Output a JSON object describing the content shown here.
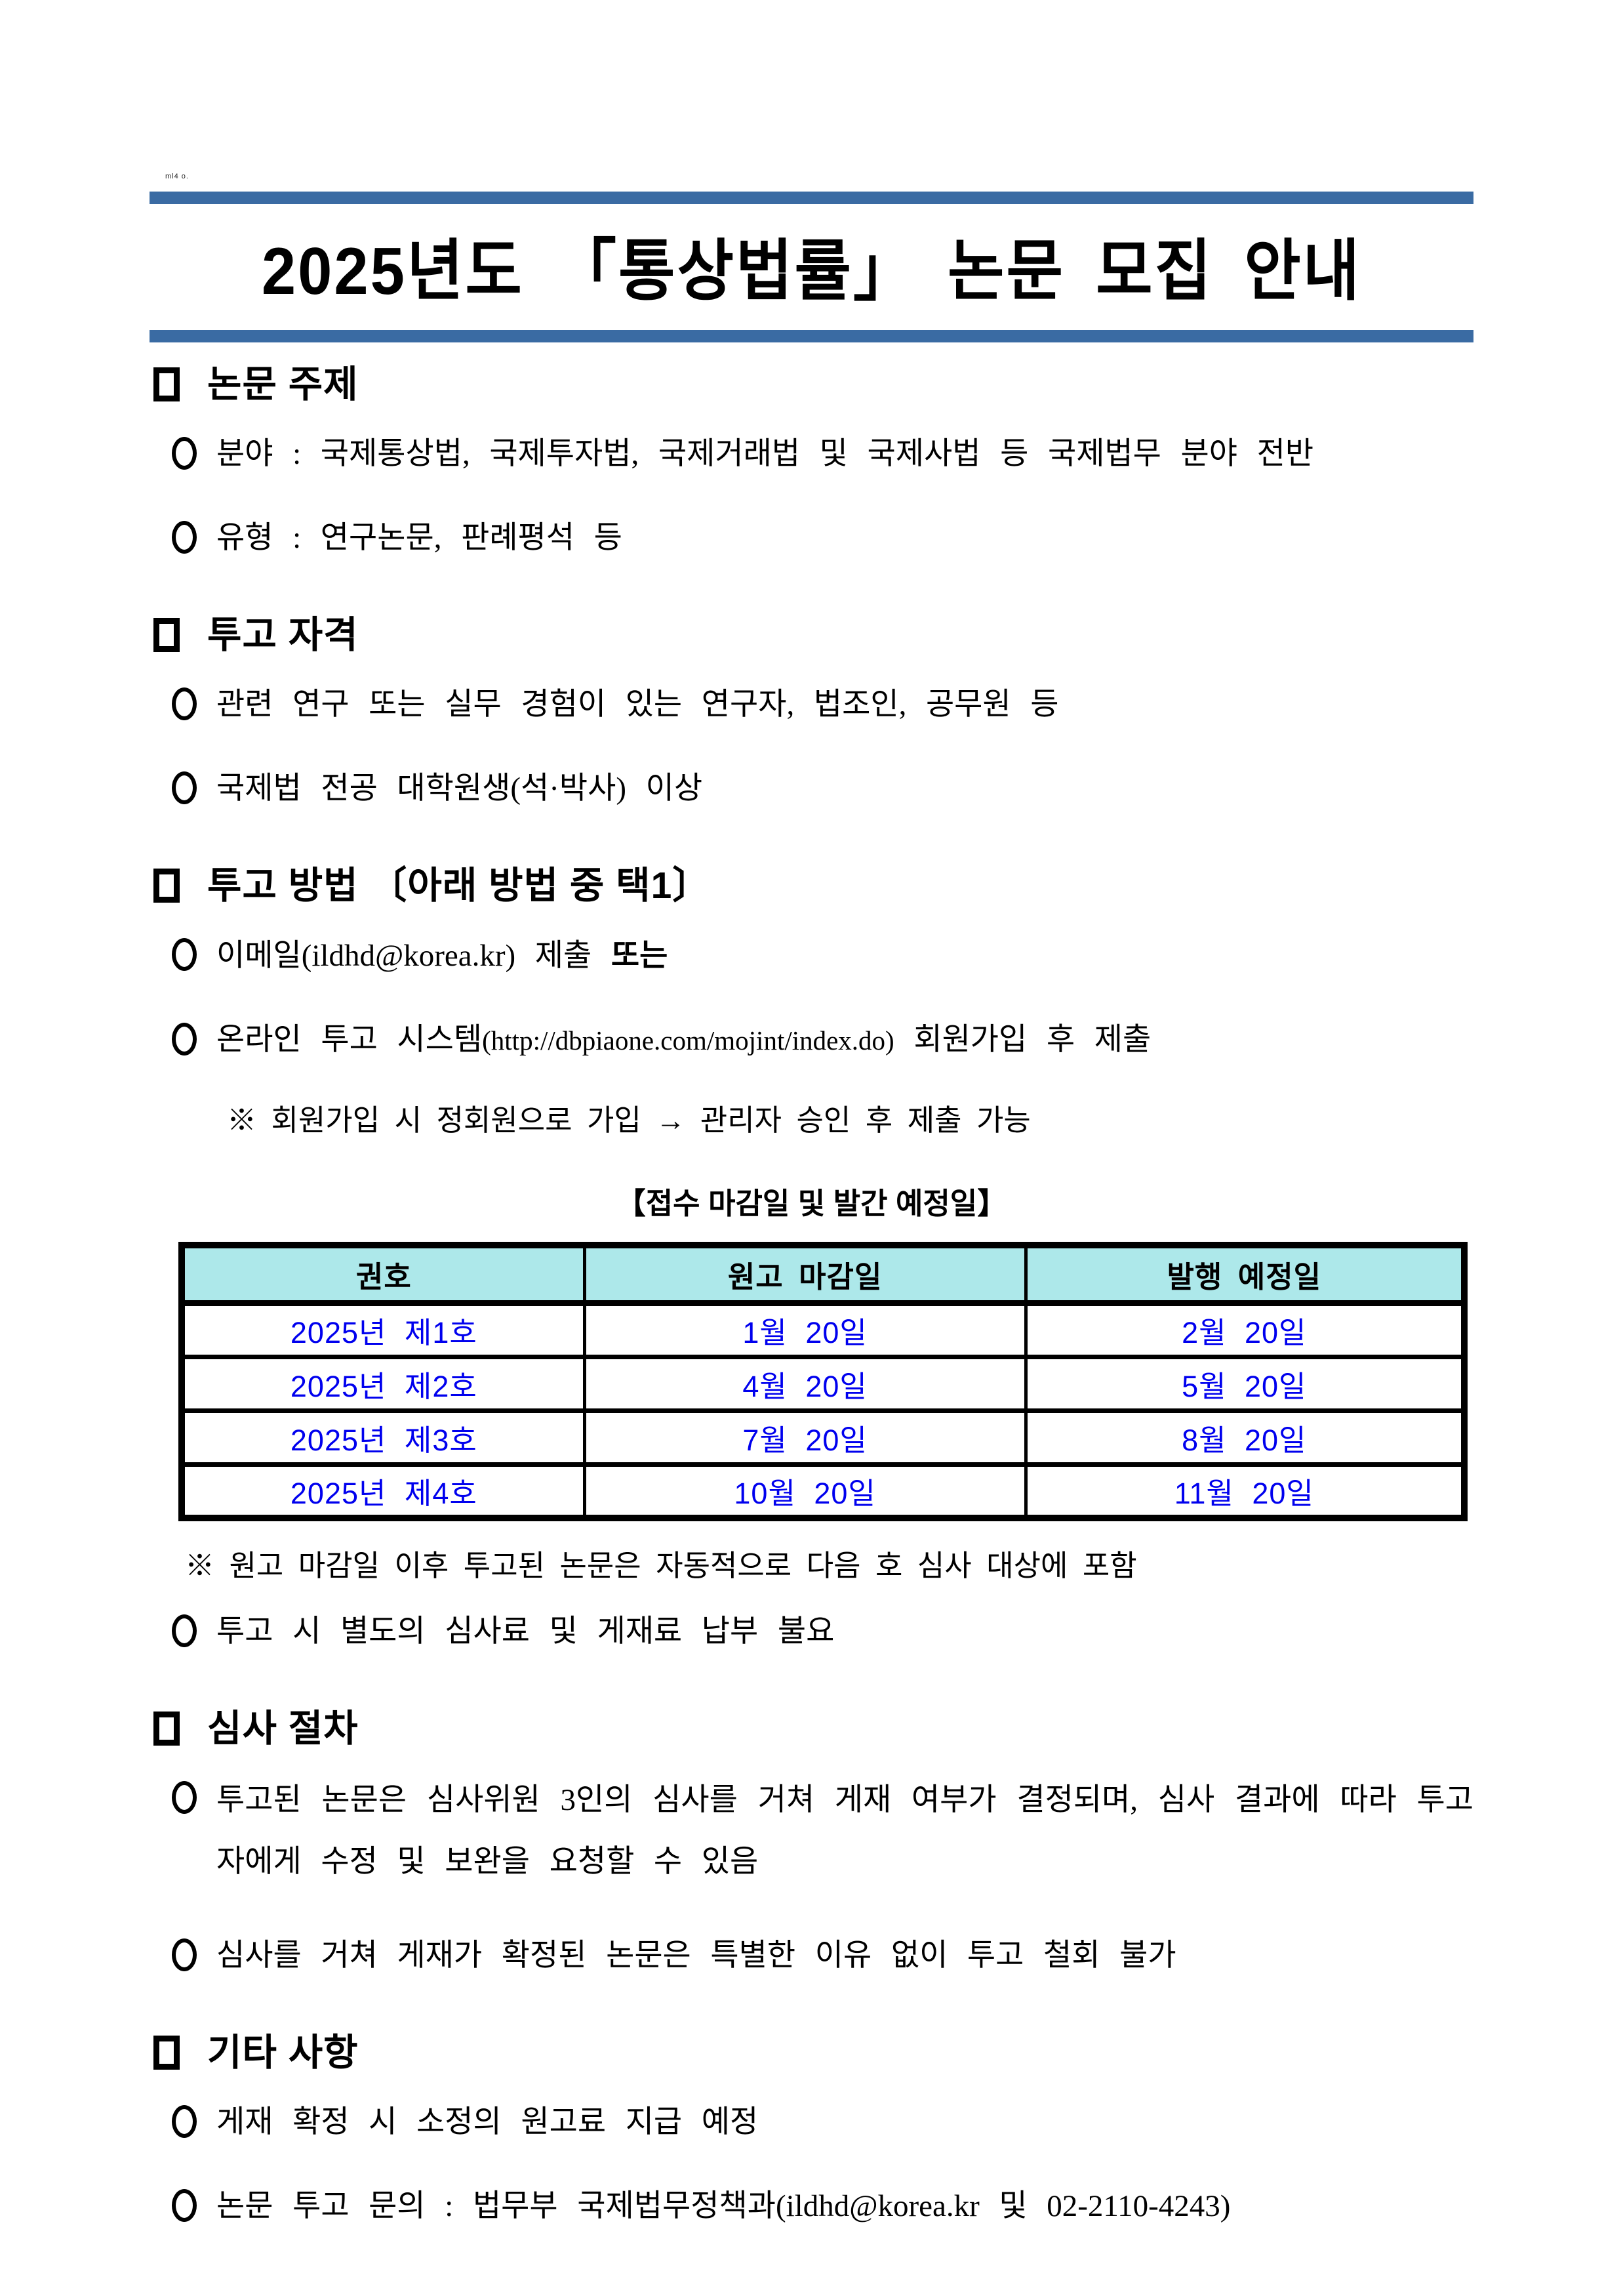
{
  "artifact": "ml4 o.",
  "title": "2025년도 「통상법률」 논문 모집 안내",
  "sections": {
    "topic": {
      "heading": "논문 주제",
      "items": [
        "분야 : 국제통상법, 국제투자법, 국제거래법 및 국제사법 등 국제법무 분야 전반",
        "유형 : 연구논문, 판례평석 등"
      ]
    },
    "eligibility": {
      "heading": "투고 자격",
      "items": [
        "관련 연구 또는 실무 경험이 있는 연구자, 법조인, 공무원 등",
        "국제법 전공 대학원생(석·박사) 이상"
      ]
    },
    "method": {
      "heading": "투고 방법 〔아래 방법 중 택1〕",
      "email_item": {
        "prefix": "이메일(ildhd@korea.kr) 제출 ",
        "bold": "또는"
      },
      "online_item": {
        "prefix": "온라인 투고 시스템",
        "url": "(http://dbpiaone.com/mojint/index.do)",
        "suffix": " 회원가입 후 제출"
      },
      "note": "※ 회원가입 시 정회원으로 가입 → 관리자 승인 후 제출 가능"
    },
    "schedule": {
      "table_title": "【접수 마감일 및 발간 예정일】",
      "table": {
        "headers": [
          "권호",
          "원고 마감일",
          "발행 예정일"
        ],
        "rows": [
          [
            "2025년 제1호",
            "1월 20일",
            "2월 20일"
          ],
          [
            "2025년 제2호",
            "4월 20일",
            "5월 20일"
          ],
          [
            "2025년 제3호",
            "7월 20일",
            "8월 20일"
          ],
          [
            "2025년 제4호",
            "10월 20일",
            "11월 20일"
          ]
        ]
      },
      "note": "※ 원고 마감일 이후 투고된 논문은 자동적으로 다음 호 심사 대상에 포함",
      "fee_item": "투고 시 별도의 심사료 및 게재료 납부 불요"
    },
    "review": {
      "heading": "심사 절차",
      "items": [
        "투고된 논문은 심사위원 3인의 심사를 거쳐 게재 여부가 결정되며, 심사 결과에 따라 투고자에게 수정 및 보완을 요청할 수 있음",
        "심사를 거쳐 게재가 확정된 논문은 특별한 이유 없이 투고 철회 불가"
      ]
    },
    "etc": {
      "heading": "기타 사항",
      "items": [
        "게재 확정 시 소정의 원고료 지급 예정",
        "논문 투고 문의 : 법무부 국제법무정책과(ildhd@korea.kr 및 02-2110-4243)"
      ]
    }
  },
  "colors": {
    "rule_blue": "#3a6ba3",
    "table_header_bg": "#ade8ea",
    "table_text_blue": "#0000ee"
  }
}
